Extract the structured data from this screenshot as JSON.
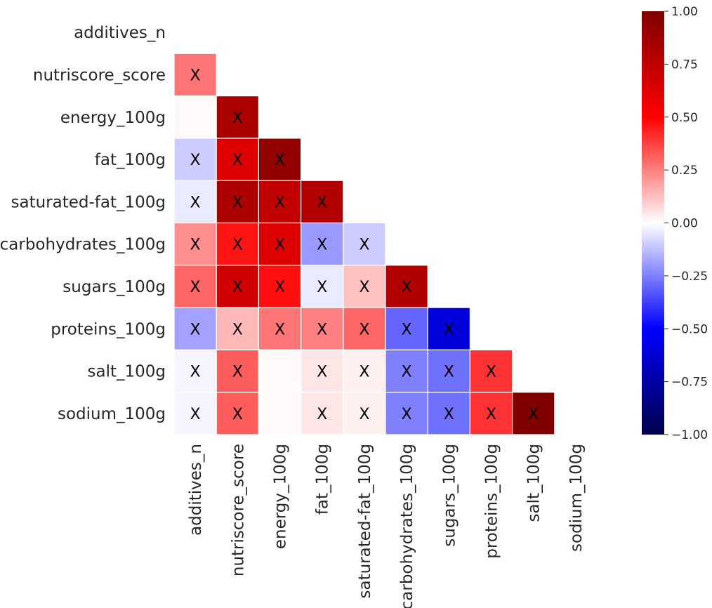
{
  "chart_data": {
    "type": "heatmap",
    "title": "",
    "xlabel": "",
    "ylabel": "",
    "variables": [
      "additives_n",
      "nutriscore_score",
      "energy_100g",
      "fat_100g",
      "saturated-fat_100g",
      "carbohydrates_100g",
      "sugars_100g",
      "proteins_100g",
      "salt_100g",
      "sodium_100g"
    ],
    "mask": "lower-triangle (diagonal and upper triangle hidden)",
    "colormap": "seismic",
    "color_range": [
      -1.0,
      1.0
    ],
    "grid": false,
    "matrix": [
      [
        null,
        null,
        null,
        null,
        null,
        null,
        null,
        null,
        null,
        null
      ],
      [
        0.27,
        null,
        null,
        null,
        null,
        null,
        null,
        null,
        null,
        null
      ],
      [
        0.01,
        0.83,
        null,
        null,
        null,
        null,
        null,
        null,
        null,
        null
      ],
      [
        -0.1,
        0.63,
        0.92,
        null,
        null,
        null,
        null,
        null,
        null,
        null
      ],
      [
        -0.04,
        0.82,
        0.74,
        0.8,
        null,
        null,
        null,
        null,
        null,
        null
      ],
      [
        0.22,
        0.46,
        0.63,
        -0.2,
        -0.1,
        null,
        null,
        null,
        null,
        null
      ],
      [
        0.3,
        0.68,
        0.47,
        -0.04,
        0.12,
        0.81,
        null,
        null,
        null,
        null
      ],
      [
        -0.18,
        0.14,
        0.27,
        0.25,
        0.3,
        -0.3,
        -0.6,
        null,
        null,
        null
      ],
      [
        -0.02,
        0.32,
        0.01,
        0.05,
        0.03,
        -0.25,
        -0.28,
        0.4,
        null,
        null
      ],
      [
        -0.02,
        0.32,
        0.01,
        0.05,
        0.03,
        -0.25,
        -0.28,
        0.4,
        1.0,
        null
      ]
    ],
    "annotations": [
      [
        null,
        null,
        null,
        null,
        null,
        null,
        null,
        null,
        null,
        null
      ],
      [
        "X",
        null,
        null,
        null,
        null,
        null,
        null,
        null,
        null,
        null
      ],
      [
        "",
        "X",
        null,
        null,
        null,
        null,
        null,
        null,
        null,
        null
      ],
      [
        "X",
        "X",
        "X",
        null,
        null,
        null,
        null,
        null,
        null,
        null
      ],
      [
        "X",
        "X",
        "X",
        "X",
        null,
        null,
        null,
        null,
        null,
        null
      ],
      [
        "X",
        "X",
        "X",
        "X",
        "X",
        null,
        null,
        null,
        null,
        null
      ],
      [
        "X",
        "X",
        "X",
        "X",
        "X",
        "X",
        null,
        null,
        null,
        null
      ],
      [
        "X",
        "X",
        "X",
        "X",
        "X",
        "X",
        "X",
        null,
        null,
        null
      ],
      [
        "X",
        "X",
        "",
        "X",
        "X",
        "X",
        "X",
        "X",
        null,
        null
      ],
      [
        "X",
        "X",
        "",
        "X",
        "X",
        "X",
        "X",
        "X",
        "X",
        null
      ]
    ],
    "colorbar": {
      "ticks": [
        1.0,
        0.75,
        0.5,
        0.25,
        0.0,
        -0.25,
        -0.5,
        -0.75,
        -1.0
      ],
      "tick_labels": [
        "1.00",
        "0.75",
        "0.50",
        "0.25",
        "0.00",
        "−0.25",
        "−0.50",
        "−0.75",
        "−1.00"
      ]
    }
  }
}
